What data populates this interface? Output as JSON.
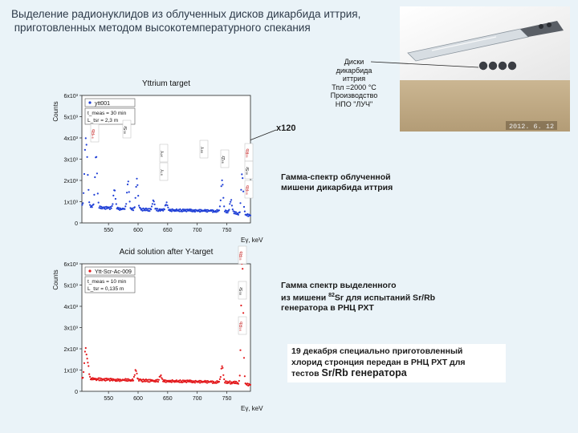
{
  "slide": {
    "title_line1": "Выделение радионуклидов из облученных дисков дикарбида иттрия,",
    "title_line2": " приготовленных методом высокотемпературного спекания"
  },
  "photo": {
    "caption": [
      "Диски",
      "дикарбида",
      "иттрия",
      "Тпл =2000 °С",
      "Производство",
      "НПО \"ЛУЧ\""
    ],
    "date_stamp": "2012. 6. 12"
  },
  "magnification": "x120",
  "description_1": {
    "line1": "Гамма-спектр облученной",
    "line2": "мишени дикарбида иттрия"
  },
  "description_2": {
    "line1": "Гамма спектр  выделенного",
    "line2_prefix": "из мишени ",
    "line2_sup": "82",
    "line2_suffix": "Sr для испытаний Sr/Rb",
    "line3": "генератора в РНЦ РХТ"
  },
  "note": {
    "line1": "19 декабря специально приготовленный",
    "line2": "хлорид стронция передан в РНЦ РХТ для",
    "line3_prefix": "тестов ",
    "line3_big": "Sr/Rb генератора"
  },
  "chart_data": [
    {
      "type": "scatter",
      "title": "Yttrium target",
      "ylabel": "Counts",
      "xlabel": "Eγ, keV",
      "xlim": [
        505,
        790
      ],
      "ylim": [
        0,
        6000
      ],
      "x_ticks": [
        550,
        600,
        650,
        700,
        750
      ],
      "y_ticks": [
        {
          "value": 0,
          "label": "0"
        },
        {
          "value": 1000,
          "label": "1x10³"
        },
        {
          "value": 2000,
          "label": "2x10³"
        },
        {
          "value": 3000,
          "label": "3x10³"
        },
        {
          "value": 4000,
          "label": "4x10³"
        },
        {
          "value": 5000,
          "label": "5x10³"
        },
        {
          "value": 6000,
          "label": "6x10³"
        }
      ],
      "legend": "top-left",
      "series": [
        {
          "name": "ytt001",
          "color": "#1f3fd6",
          "baseline": [
            [
              505,
              820
            ],
            [
              540,
              720
            ],
            [
              580,
              650
            ],
            [
              620,
              620
            ],
            [
              660,
              600
            ],
            [
              700,
              580
            ],
            [
              740,
              560
            ],
            [
              760,
              480
            ],
            [
              790,
              350
            ]
          ],
          "peaks": [
            {
              "x": 511,
              "height": 2700,
              "width": 2.5
            },
            {
              "x": 514,
              "height": 1600,
              "width": 2.5
            },
            {
              "x": 529,
              "height": 2500,
              "width": 2.5
            },
            {
              "x": 560,
              "height": 900,
              "width": 2.5
            },
            {
              "x": 583,
              "height": 1300,
              "width": 2.5
            },
            {
              "x": 598,
              "height": 1400,
              "width": 2.5
            },
            {
              "x": 626,
              "height": 450,
              "width": 2.5
            },
            {
              "x": 648,
              "height": 350,
              "width": 2.5
            },
            {
              "x": 742,
              "height": 1500,
              "width": 2.5
            },
            {
              "x": 757,
              "height": 600,
              "width": 2.5
            },
            {
              "x": 776,
              "height": 1900,
              "width": 2.5
            }
          ]
        }
      ],
      "legend_label": "ytt001",
      "legend_lines": [
        "t_meas = 30 min",
        "L_tsr = 2,3 m"
      ],
      "peak_labels": [
        "⁸⁴Rb",
        "⁸⁵Sr",
        "⁹⁰Y",
        "⁸⁷Y",
        "⁸⁸Y",
        "⁸⁸Zr",
        "⁸²Rb",
        "⁸⁵Sr",
        "⁸⁶Rb"
      ],
      "annotation_marker": "Δ"
    },
    {
      "type": "scatter",
      "title": "Acid solution after Y-target",
      "ylabel": "Counts",
      "xlabel": "Eγ, keV",
      "xlim": [
        505,
        790
      ],
      "ylim": [
        0,
        6000
      ],
      "x_ticks": [
        550,
        600,
        650,
        700,
        750
      ],
      "y_ticks": [
        {
          "value": 0,
          "label": "0"
        },
        {
          "value": 1000,
          "label": "1x10³"
        },
        {
          "value": 2000,
          "label": "2x10³"
        },
        {
          "value": 3000,
          "label": "3x10³"
        },
        {
          "value": 4000,
          "label": "4x10³"
        },
        {
          "value": 5000,
          "label": "5x10³"
        },
        {
          "value": 6000,
          "label": "6x10³"
        }
      ],
      "legend": "top-left",
      "series": [
        {
          "name": "Ytt-Scr-Ac-009",
          "color": "#e3191c",
          "baseline": [
            [
              505,
              600
            ],
            [
              560,
              540
            ],
            [
              620,
              500
            ],
            [
              680,
              470
            ],
            [
              740,
              430
            ],
            [
              770,
              400
            ],
            [
              790,
              300
            ]
          ],
          "peaks": [
            {
              "x": 511,
              "height": 1400,
              "width": 2.5
            },
            {
              "x": 515,
              "height": 700,
              "width": 2.5
            },
            {
              "x": 596,
              "height": 480,
              "width": 2.5
            },
            {
              "x": 638,
              "height": 260,
              "width": 2.5
            },
            {
              "x": 742,
              "height": 800,
              "width": 2.5
            },
            {
              "x": 776,
              "height": 5900,
              "width": 2.5
            }
          ]
        }
      ],
      "legend_label": "Ytt-Scr-Ac-009",
      "legend_lines": [
        "t_meas = 10 min",
        "L_tsr = 0,135 m"
      ],
      "peak_labels": [
        "⁸²Rb",
        "⁸⁵Sr",
        "⁸⁶Rb"
      ],
      "annotation_marker": "Δ"
    }
  ]
}
